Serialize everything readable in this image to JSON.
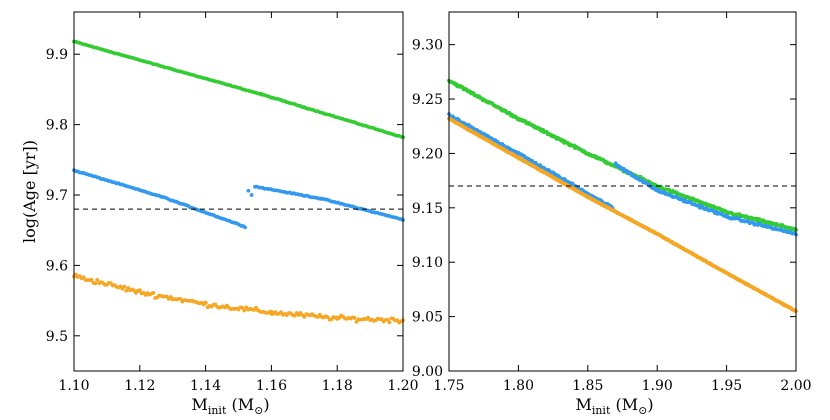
{
  "chart_data": [
    {
      "type": "scatter",
      "panel": "left",
      "xlabel": "M_init (M_sun)",
      "xlabel_main": "M",
      "xlabel_sub": "init",
      "xlabel_unit_open": " (M",
      "xlabel_unit_close": ")",
      "ylabel": "log(Age [yr])",
      "xlim": [
        1.1,
        1.2
      ],
      "ylim": [
        9.45,
        9.96
      ],
      "xticks": [
        "1.10",
        "1.12",
        "1.14",
        "1.16",
        "1.18",
        "1.20"
      ],
      "yticks": [
        "9.5",
        "9.6",
        "9.7",
        "9.8",
        "9.9"
      ],
      "hline": 9.68,
      "series": [
        {
          "name": "green",
          "color": "#33cc33",
          "segments": [
            [
              [
                1.1,
                9.918
              ],
              [
                1.157,
                9.843
              ],
              [
                1.2,
                9.782
              ]
            ]
          ],
          "noise": 0.0008,
          "density": 170
        },
        {
          "name": "blue",
          "color": "#3399ee",
          "segments": [
            [
              [
                1.1,
                9.735
              ],
              [
                1.127,
                9.697
              ],
              [
                1.152,
                9.655
              ]
            ],
            [
              [
                1.155,
                9.712
              ],
              [
                1.175,
                9.695
              ],
              [
                1.2,
                9.665
              ]
            ]
          ],
          "noise": 0.001,
          "density": 170,
          "extra": [
            [
              1.153,
              9.706
            ],
            [
              1.154,
              9.7
            ]
          ]
        },
        {
          "name": "orange",
          "color": "#f5a623",
          "segments": [
            [
              [
                1.1,
                9.585
              ],
              [
                1.12,
                9.562
              ],
              [
                1.14,
                9.545
              ],
              [
                1.16,
                9.533
              ],
              [
                1.18,
                9.525
              ],
              [
                1.2,
                9.522
              ]
            ]
          ],
          "noise": 0.005,
          "density": 170
        }
      ]
    },
    {
      "type": "scatter",
      "panel": "right",
      "xlabel": "M_init (M_sun)",
      "xlabel_main": "M",
      "xlabel_sub": "init",
      "xlabel_unit_open": " (M",
      "xlabel_unit_close": ")",
      "ylabel": "",
      "xlim": [
        1.75,
        2.0
      ],
      "ylim": [
        9.0,
        9.33
      ],
      "xticks": [
        "1.75",
        "1.80",
        "1.85",
        "1.90",
        "1.95",
        "2.00"
      ],
      "yticks": [
        "9.00",
        "9.05",
        "9.10",
        "9.15",
        "9.20",
        "9.25",
        "9.30"
      ],
      "hline": 9.17,
      "series": [
        {
          "name": "green",
          "color": "#33cc33",
          "segments": [
            [
              [
                1.75,
                9.267
              ],
              [
                1.8,
                9.232
              ],
              [
                1.85,
                9.2
              ],
              [
                1.9,
                9.17
              ],
              [
                1.95,
                9.146
              ],
              [
                2.0,
                9.13
              ]
            ]
          ],
          "noise": 0.0015,
          "density": 380
        },
        {
          "name": "blue",
          "color": "#3399ee",
          "segments": [
            [
              [
                1.75,
                9.235
              ],
              [
                1.8,
                9.2
              ],
              [
                1.868,
                9.15
              ]
            ],
            [
              [
                1.87,
                9.19
              ],
              [
                1.9,
                9.166
              ],
              [
                1.95,
                9.142
              ],
              [
                2.0,
                9.126
              ]
            ]
          ],
          "noise": 0.0015,
          "density": 300
        },
        {
          "name": "orange",
          "color": "#f5a623",
          "segments": [
            [
              [
                1.75,
                9.232
              ],
              [
                1.8,
                9.196
              ],
              [
                1.85,
                9.16
              ],
              [
                1.9,
                9.126
              ],
              [
                1.95,
                9.09
              ],
              [
                2.0,
                9.055
              ]
            ]
          ],
          "noise": 0.0006,
          "density": 520
        }
      ]
    }
  ]
}
